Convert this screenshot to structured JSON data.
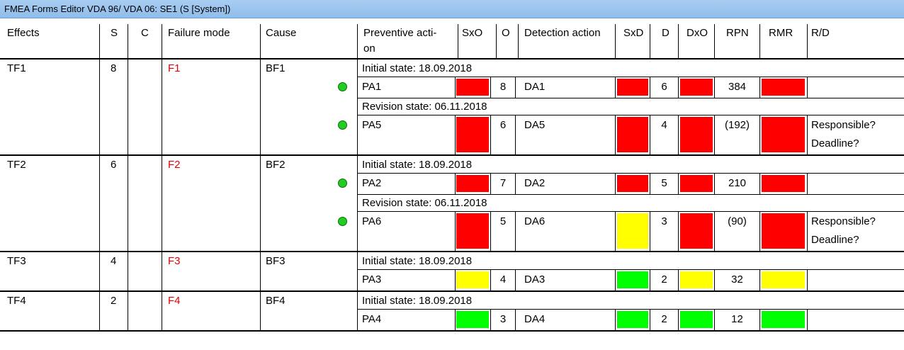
{
  "window": {
    "title": "FMEA Forms Editor VDA 96/ VDA 06: SE1 (S [System])"
  },
  "headers": {
    "effects": "Effects",
    "s": "S",
    "c": "C",
    "failure_mode": "Failure mode",
    "cause": "Cause",
    "preventive_line1": "Preventive acti-",
    "preventive_line2": "on",
    "sxo": "SxO",
    "o": "O",
    "detection": "Detection action",
    "sxd": "SxD",
    "d": "D",
    "dxo": "DxO",
    "rpn": "RPN",
    "rmr": "RMR",
    "rd": "R/D"
  },
  "groups": [
    {
      "effect": "TF1",
      "s": "8",
      "failure": "F1",
      "cause": "BF1",
      "states": [
        {
          "label": "Initial state: 18.09.2018",
          "row": {
            "dot": true,
            "pa": "PA1",
            "sxo": "red",
            "o": "8",
            "da": "DA1",
            "sxd": "red",
            "d": "6",
            "dxo": "red",
            "rpn": "384",
            "rmr": "red",
            "rd1": "",
            "rd2": ""
          }
        },
        {
          "label": "Revision state: 06.11.2018",
          "row": {
            "dot": true,
            "pa": "PA5",
            "sxo": "red",
            "o": "6",
            "da": "DA5",
            "sxd": "red",
            "d": "4",
            "dxo": "red",
            "rpn": "(192)",
            "rmr": "red",
            "rd1": "Responsible?",
            "rd2": "Deadline?"
          }
        }
      ]
    },
    {
      "effect": "TF2",
      "s": "6",
      "failure": "F2",
      "cause": "BF2",
      "states": [
        {
          "label": "Initial state: 18.09.2018",
          "row": {
            "dot": true,
            "pa": "PA2",
            "sxo": "red",
            "o": "7",
            "da": "DA2",
            "sxd": "red",
            "d": "5",
            "dxo": "red",
            "rpn": "210",
            "rmr": "red",
            "rd1": "",
            "rd2": ""
          }
        },
        {
          "label": "Revision state: 06.11.2018",
          "row": {
            "dot": true,
            "pa": "PA6",
            "sxo": "red",
            "o": "5",
            "da": "DA6",
            "sxd": "yellow",
            "d": "3",
            "dxo": "red",
            "rpn": "(90)",
            "rmr": "red",
            "rd1": "Responsible?",
            "rd2": "Deadline?"
          }
        }
      ]
    },
    {
      "effect": "TF3",
      "s": "4",
      "failure": "F3",
      "cause": "BF3",
      "states": [
        {
          "label": "Initial state: 18.09.2018",
          "row": {
            "dot": false,
            "pa": "PA3",
            "sxo": "yellow",
            "o": "4",
            "da": "DA3",
            "sxd": "green",
            "d": "2",
            "dxo": "yellow",
            "rpn": "32",
            "rmr": "yellow",
            "rd1": "",
            "rd2": ""
          }
        }
      ]
    },
    {
      "effect": "TF4",
      "s": "2",
      "failure": "F4",
      "cause": "BF4",
      "states": [
        {
          "label": "Initial state: 18.09.2018",
          "row": {
            "dot": false,
            "pa": "PA4",
            "sxo": "green",
            "o": "3",
            "da": "DA4",
            "sxd": "green",
            "d": "2",
            "dxo": "green",
            "rpn": "12",
            "rmr": "green",
            "rd1": "",
            "rd2": ""
          }
        }
      ]
    }
  ]
}
